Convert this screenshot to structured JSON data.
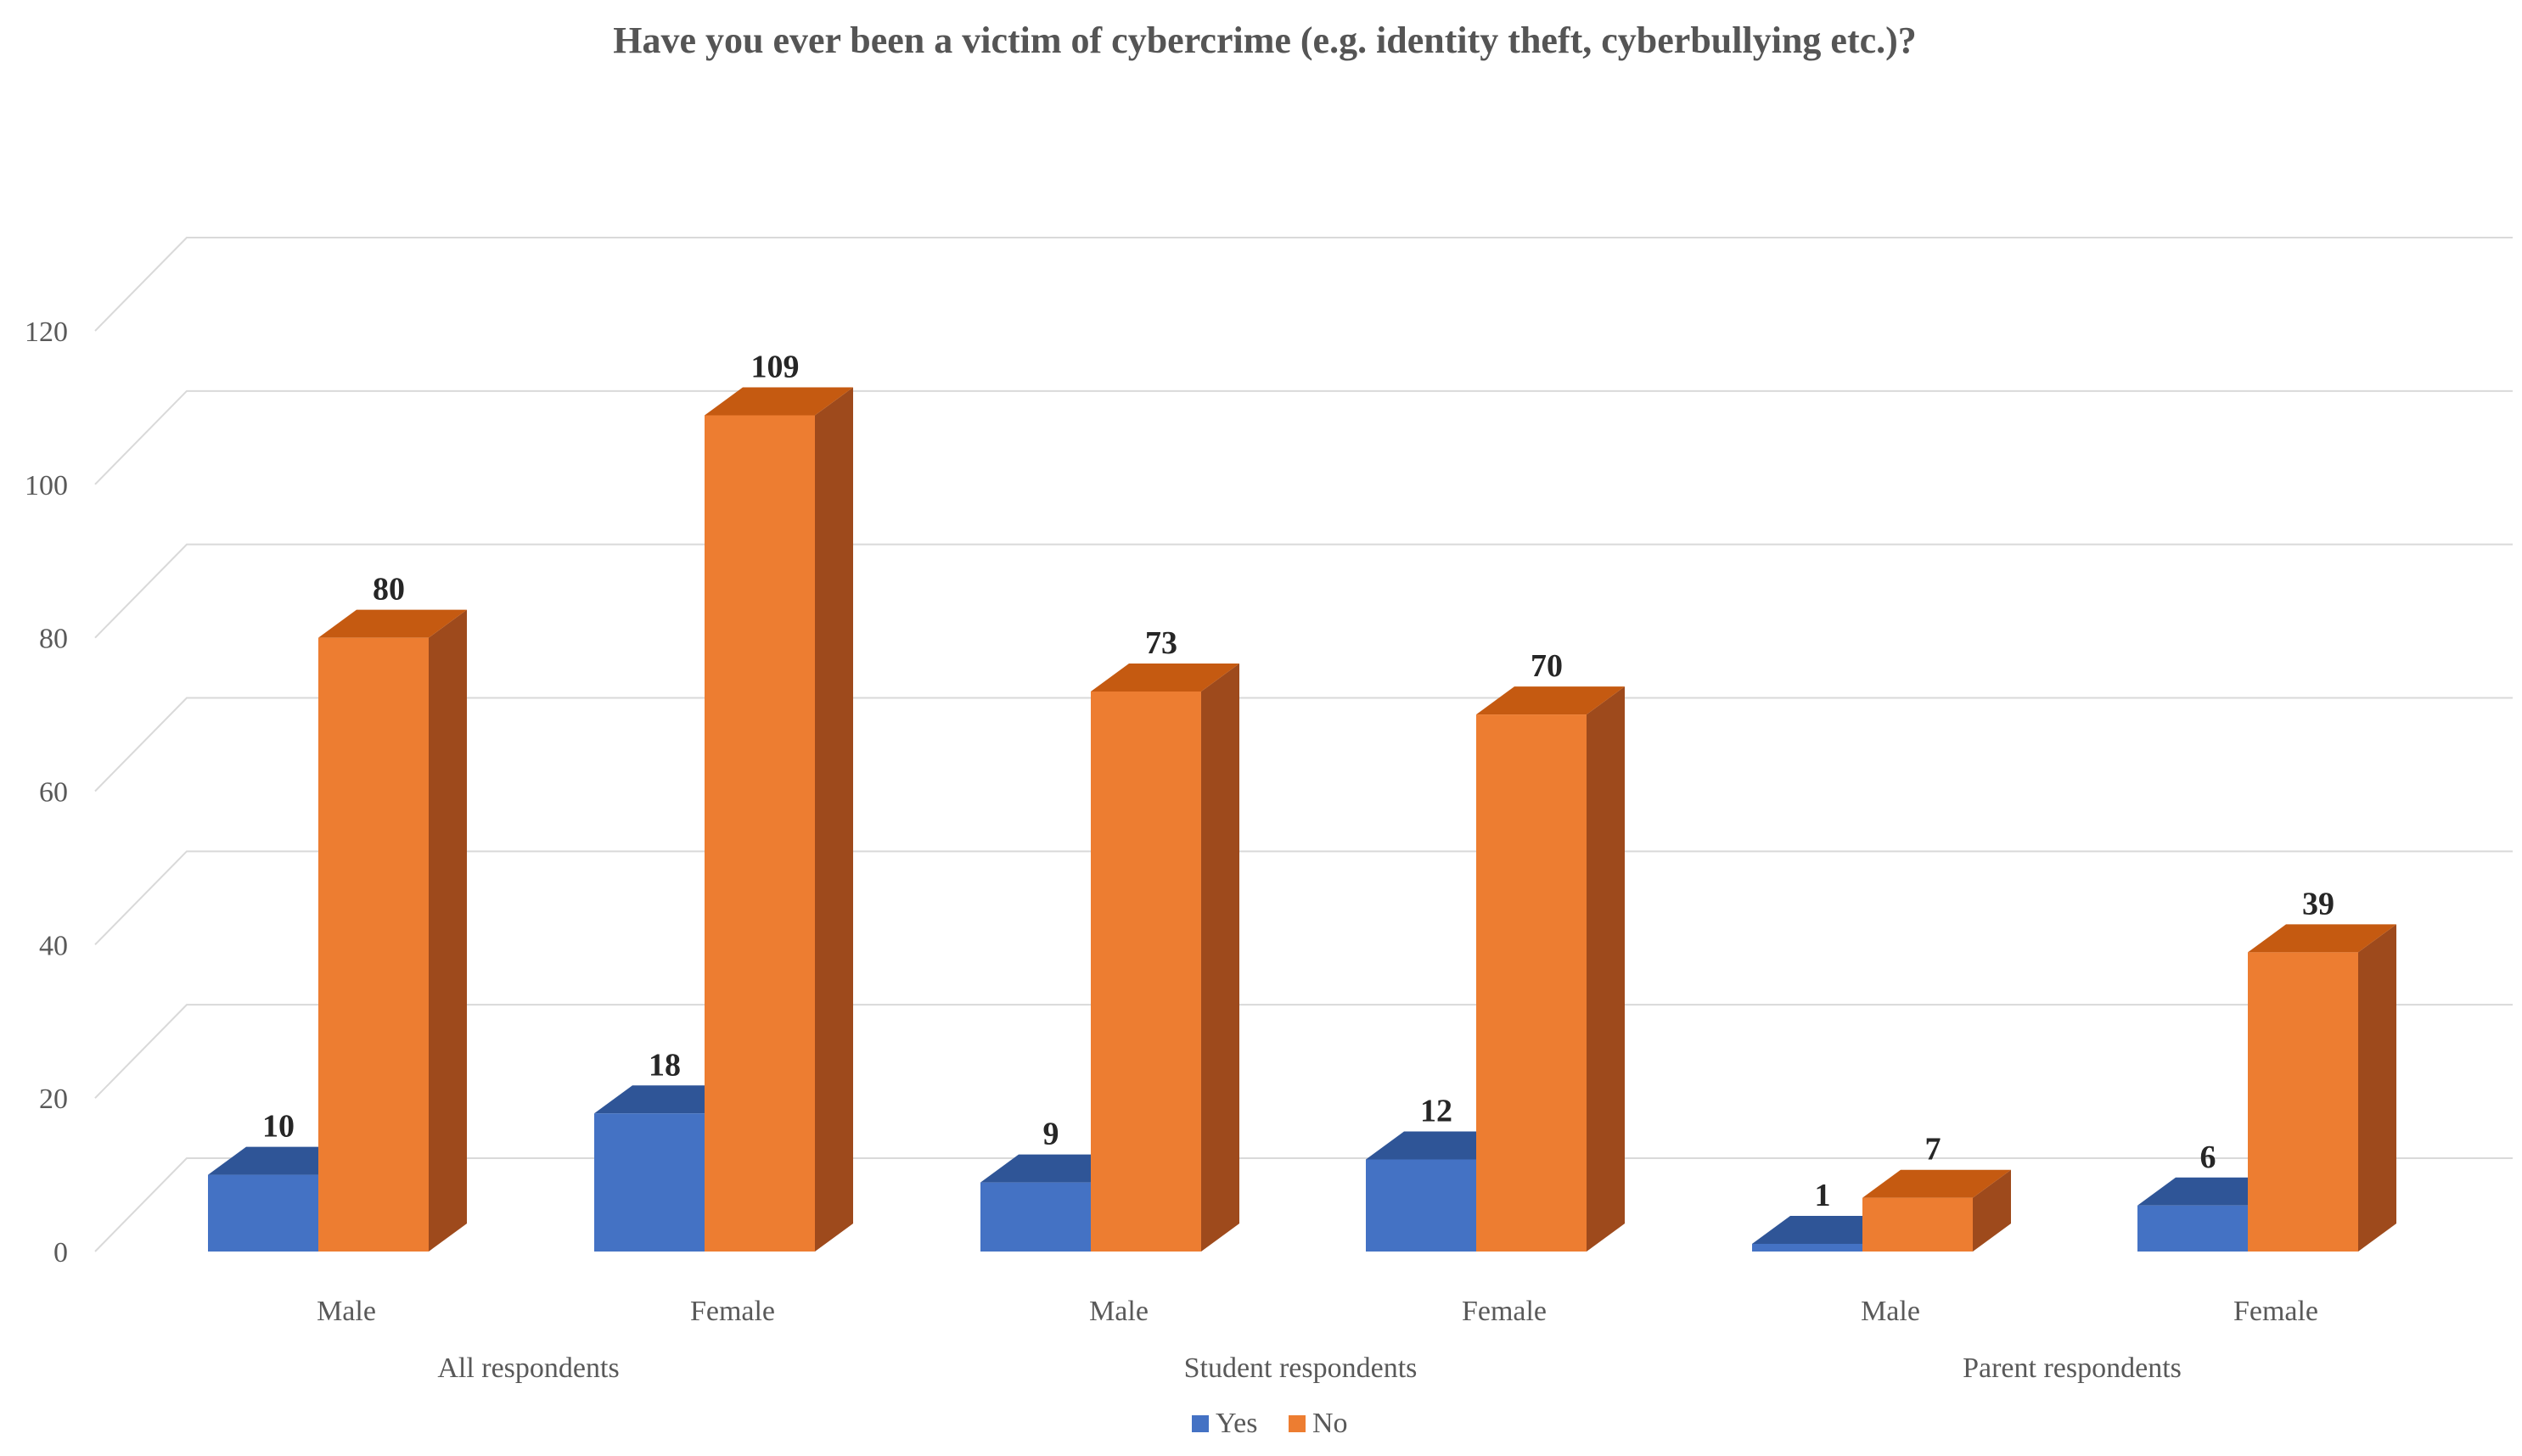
{
  "chart_data": {
    "type": "bar",
    "title": "Have you ever been a victim of cybercrime (e.g. identity theft, cyberbullying etc.)?",
    "groups": [
      "All respondents",
      "Student respondents",
      "Parent respondents"
    ],
    "categories": [
      "Male",
      "Female",
      "Male",
      "Female",
      "Male",
      "Female"
    ],
    "series": [
      {
        "name": "Yes",
        "values": [
          10,
          18,
          9,
          12,
          1,
          6
        ],
        "color": "#4472C4",
        "top_color": "#2F5597",
        "side_color": "#2F5597"
      },
      {
        "name": "No",
        "values": [
          80,
          109,
          73,
          70,
          7,
          39
        ],
        "color": "#ED7D31",
        "top_color": "#C55A11",
        "side_color": "#9E4A1C"
      }
    ],
    "yticks": [
      0,
      20,
      40,
      60,
      80,
      100,
      120
    ],
    "ylim": [
      0,
      120
    ],
    "legend_position": "bottom"
  }
}
